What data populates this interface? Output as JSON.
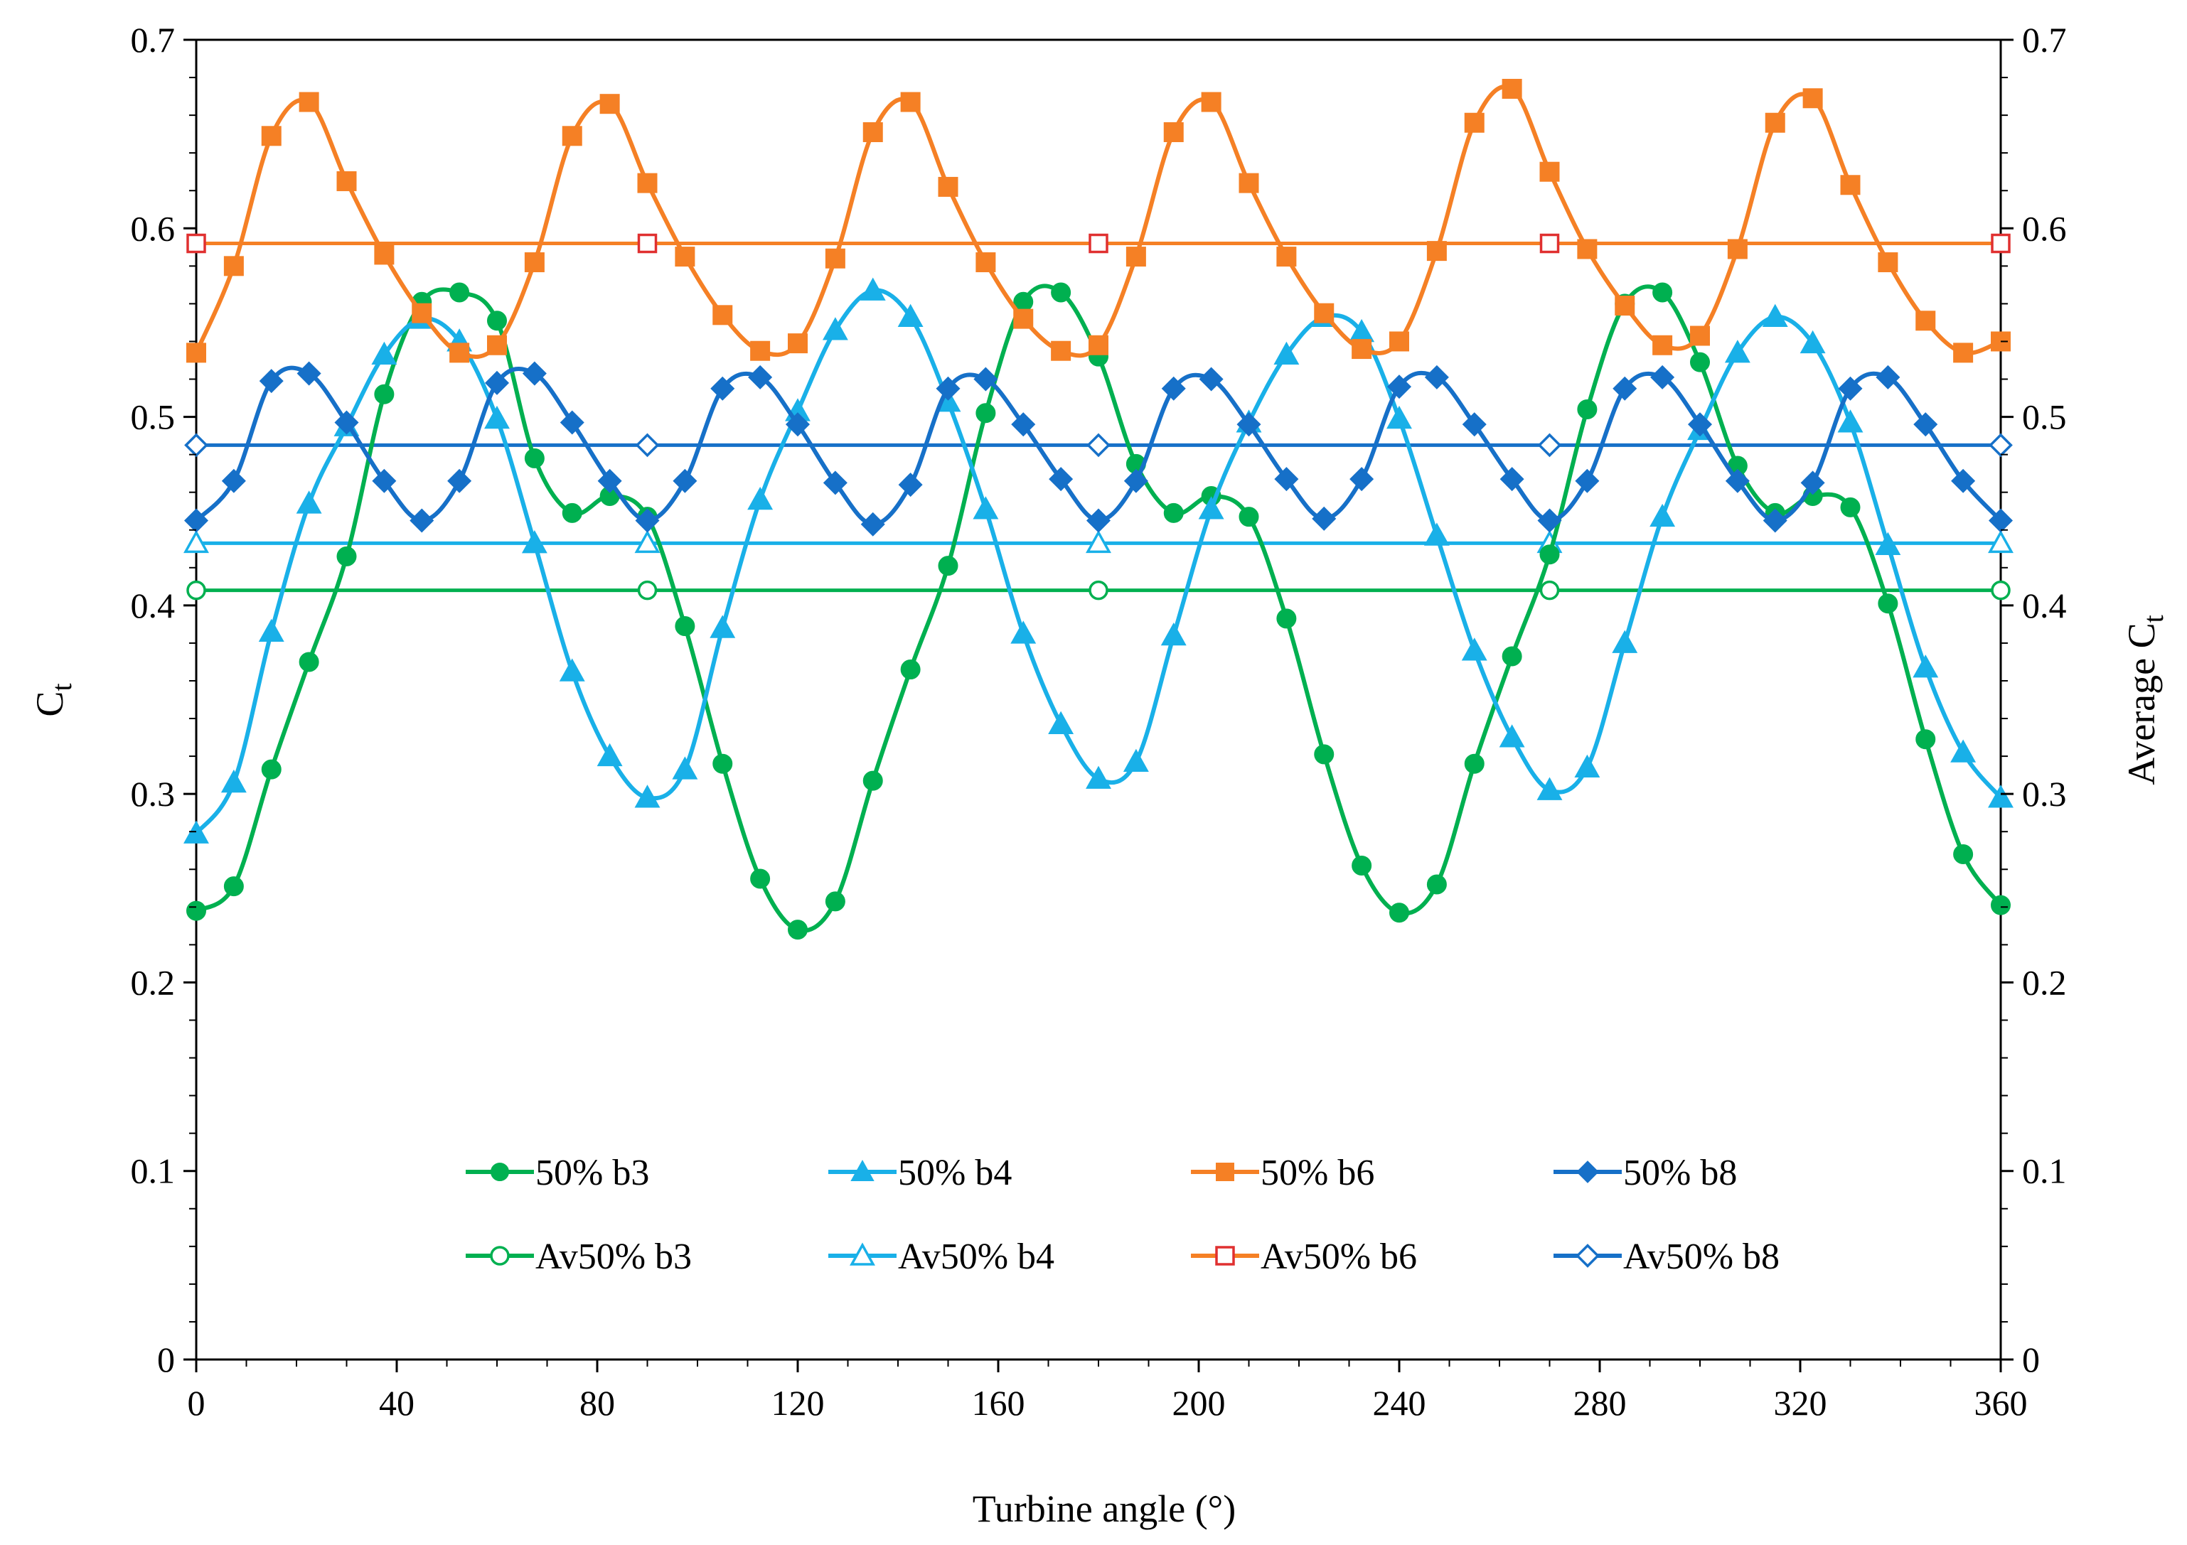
{
  "chart_data": {
    "type": "line",
    "title": "",
    "xlabel": "Turbine angle (°)",
    "ylabel": {
      "main": "C",
      "sub": "t"
    },
    "y2label": {
      "main": "Average C",
      "sub": "t"
    },
    "xlim": [
      0,
      360
    ],
    "ylim": [
      0,
      0.7
    ],
    "y2lim": [
      0,
      0.7
    ],
    "xticks": [
      "0",
      "40",
      "80",
      "120",
      "160",
      "200",
      "240",
      "280",
      "320",
      "360"
    ],
    "yticks": [
      "0",
      "0.1",
      "0.2",
      "0.3",
      "0.4",
      "0.5",
      "0.6",
      "0.7"
    ],
    "y2ticks": [
      "0",
      "0.1",
      "0.2",
      "0.3",
      "0.4",
      "0.5",
      "0.6",
      "0.7"
    ],
    "grid": false,
    "legend_position": "bottom-center",
    "series": [
      {
        "name": "50% b3",
        "color": "#00b050",
        "marker": "circle",
        "filled": true,
        "x": [
          0,
          7.5,
          15,
          22.5,
          30,
          37.5,
          45,
          52.5,
          60,
          67.5,
          75,
          82.5,
          90,
          97.5,
          105,
          112.5,
          120,
          127.5,
          135,
          142.5,
          150,
          157.5,
          165,
          172.5,
          180,
          187.5,
          195,
          202.5,
          210,
          217.5,
          225,
          232.5,
          240,
          247.5,
          255,
          262.5,
          270,
          277.5,
          285,
          292.5,
          300,
          307.5,
          315,
          322.5,
          330,
          337.5,
          345,
          352.5,
          360
        ],
        "y": [
          0.238,
          0.251,
          0.313,
          0.37,
          0.426,
          0.512,
          0.561,
          0.566,
          0.551,
          0.478,
          0.449,
          0.458,
          0.447,
          0.389,
          0.316,
          0.255,
          0.228,
          0.243,
          0.307,
          0.366,
          0.421,
          0.502,
          0.561,
          0.566,
          0.532,
          0.475,
          0.449,
          0.458,
          0.447,
          0.393,
          0.321,
          0.262,
          0.237,
          0.252,
          0.316,
          0.373,
          0.427,
          0.504,
          0.56,
          0.566,
          0.529,
          0.474,
          0.449,
          0.458,
          0.452,
          0.401,
          0.329,
          0.268,
          0.241
        ]
      },
      {
        "name": "50% b4",
        "color": "#19b0e8",
        "marker": "triangle",
        "filled": true,
        "x": [
          0,
          7.5,
          15,
          22.5,
          30,
          37.5,
          45,
          52.5,
          60,
          67.5,
          75,
          82.5,
          90,
          97.5,
          105,
          112.5,
          120,
          127.5,
          135,
          142.5,
          150,
          157.5,
          165,
          172.5,
          180,
          187.5,
          195,
          202.5,
          210,
          217.5,
          225,
          232.5,
          240,
          247.5,
          255,
          262.5,
          270,
          277.5,
          285,
          292.5,
          300,
          307.5,
          315,
          322.5,
          330,
          337.5,
          345,
          352.5,
          360
        ],
        "y": [
          0.279,
          0.306,
          0.386,
          0.454,
          0.495,
          0.533,
          0.552,
          0.54,
          0.499,
          0.433,
          0.365,
          0.32,
          0.298,
          0.313,
          0.388,
          0.456,
          0.503,
          0.546,
          0.567,
          0.553,
          0.508,
          0.451,
          0.385,
          0.337,
          0.308,
          0.317,
          0.384,
          0.451,
          0.497,
          0.533,
          0.553,
          0.545,
          0.499,
          0.437,
          0.376,
          0.33,
          0.302,
          0.314,
          0.38,
          0.447,
          0.493,
          0.534,
          0.553,
          0.539,
          0.497,
          0.432,
          0.367,
          0.322,
          0.298
        ]
      },
      {
        "name": "50% b6",
        "color": "#f58025",
        "marker": "square",
        "filled": true,
        "x": [
          0,
          7.5,
          15,
          22.5,
          30,
          37.5,
          45,
          52.5,
          60,
          67.5,
          75,
          82.5,
          90,
          97.5,
          105,
          112.5,
          120,
          127.5,
          135,
          142.5,
          150,
          157.5,
          165,
          172.5,
          180,
          187.5,
          195,
          202.5,
          210,
          217.5,
          225,
          232.5,
          240,
          247.5,
          255,
          262.5,
          270,
          277.5,
          285,
          292.5,
          300,
          307.5,
          315,
          322.5,
          330,
          337.5,
          345,
          352.5,
          360
        ],
        "y": [
          0.534,
          0.58,
          0.649,
          0.667,
          0.625,
          0.586,
          0.555,
          0.534,
          0.538,
          0.582,
          0.649,
          0.666,
          0.624,
          0.585,
          0.554,
          0.535,
          0.539,
          0.584,
          0.651,
          0.667,
          0.622,
          0.582,
          0.552,
          0.535,
          0.538,
          0.585,
          0.651,
          0.667,
          0.624,
          0.585,
          0.555,
          0.536,
          0.54,
          0.588,
          0.656,
          0.674,
          0.63,
          0.589,
          0.559,
          0.538,
          0.543,
          0.589,
          0.656,
          0.669,
          0.623,
          0.582,
          0.551,
          0.534,
          0.54
        ]
      },
      {
        "name": "50% b8",
        "color": "#1670c8",
        "marker": "diamond",
        "filled": true,
        "x": [
          0,
          7.5,
          15,
          22.5,
          30,
          37.5,
          45,
          52.5,
          60,
          67.5,
          75,
          82.5,
          90,
          97.5,
          105,
          112.5,
          120,
          127.5,
          135,
          142.5,
          150,
          157.5,
          165,
          172.5,
          180,
          187.5,
          195,
          202.5,
          210,
          217.5,
          225,
          232.5,
          240,
          247.5,
          255,
          262.5,
          270,
          277.5,
          285,
          292.5,
          300,
          307.5,
          315,
          322.5,
          330,
          337.5,
          345,
          352.5,
          360
        ],
        "y": [
          0.445,
          0.466,
          0.519,
          0.523,
          0.497,
          0.466,
          0.445,
          0.466,
          0.518,
          0.523,
          0.497,
          0.466,
          0.445,
          0.466,
          0.515,
          0.521,
          0.496,
          0.465,
          0.443,
          0.464,
          0.515,
          0.52,
          0.496,
          0.467,
          0.445,
          0.466,
          0.515,
          0.52,
          0.496,
          0.467,
          0.446,
          0.467,
          0.516,
          0.521,
          0.496,
          0.467,
          0.445,
          0.466,
          0.515,
          0.521,
          0.496,
          0.466,
          0.445,
          0.465,
          0.515,
          0.521,
          0.496,
          0.466,
          0.445
        ]
      },
      {
        "name": "Av50% b3",
        "color": "#00b050",
        "marker": "circle",
        "filled": false,
        "x": [
          0,
          90,
          180,
          270,
          360
        ],
        "y": [
          0.408,
          0.408,
          0.408,
          0.408,
          0.408
        ]
      },
      {
        "name": "Av50% b4",
        "color": "#19b0e8",
        "marker": "triangle",
        "filled": false,
        "x": [
          0,
          90,
          180,
          270,
          360
        ],
        "y": [
          0.433,
          0.433,
          0.433,
          0.433,
          0.433
        ]
      },
      {
        "name": "Av50% b6",
        "color": "#f58025",
        "marker": "square",
        "filled": false,
        "marker_color": "#e03030",
        "x": [
          0,
          90,
          180,
          270,
          360
        ],
        "y": [
          0.592,
          0.592,
          0.592,
          0.592,
          0.592
        ]
      },
      {
        "name": "Av50% b8",
        "color": "#1670c8",
        "marker": "diamond",
        "filled": false,
        "x": [
          0,
          90,
          180,
          270,
          360
        ],
        "y": [
          0.485,
          0.485,
          0.485,
          0.485,
          0.485
        ]
      }
    ]
  }
}
